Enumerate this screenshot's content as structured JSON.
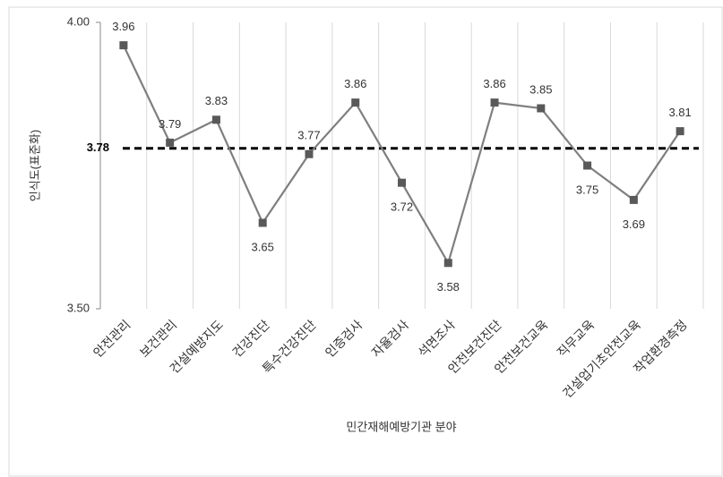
{
  "chart_data": {
    "type": "line",
    "y_axis_label": "인식도(표준화)",
    "x_axis_label": "민간재해예방기관 분야",
    "categories": [
      "안전관리",
      "보건관리",
      "건설예방지도",
      "건강진단",
      "특수건강진단",
      "인증검사",
      "자율검사",
      "석면조사",
      "안전보건진단",
      "안전보건교육",
      "직무교육",
      "건설업기초안전교육",
      "작업환경측정"
    ],
    "series": [
      {
        "name": "인식도",
        "color": "#7f7f7f",
        "marker_color": "#595959",
        "values": [
          3.96,
          3.79,
          3.83,
          3.65,
          3.77,
          3.86,
          3.72,
          3.58,
          3.86,
          3.85,
          3.75,
          3.69,
          3.81
        ]
      }
    ],
    "value_label_positions": [
      "above",
      "above",
      "above",
      "below",
      "above",
      "above",
      "below",
      "below",
      "above",
      "above",
      "below",
      "below",
      "above"
    ],
    "reference_line": {
      "value": 3.78,
      "color": "#000000",
      "dashed": true
    },
    "ylim": [
      3.5,
      4.0
    ],
    "yticks": [
      {
        "value": 3.5,
        "label": "3.50"
      },
      {
        "value": 4.0,
        "label": "4.00"
      }
    ],
    "grid": "vertical"
  }
}
